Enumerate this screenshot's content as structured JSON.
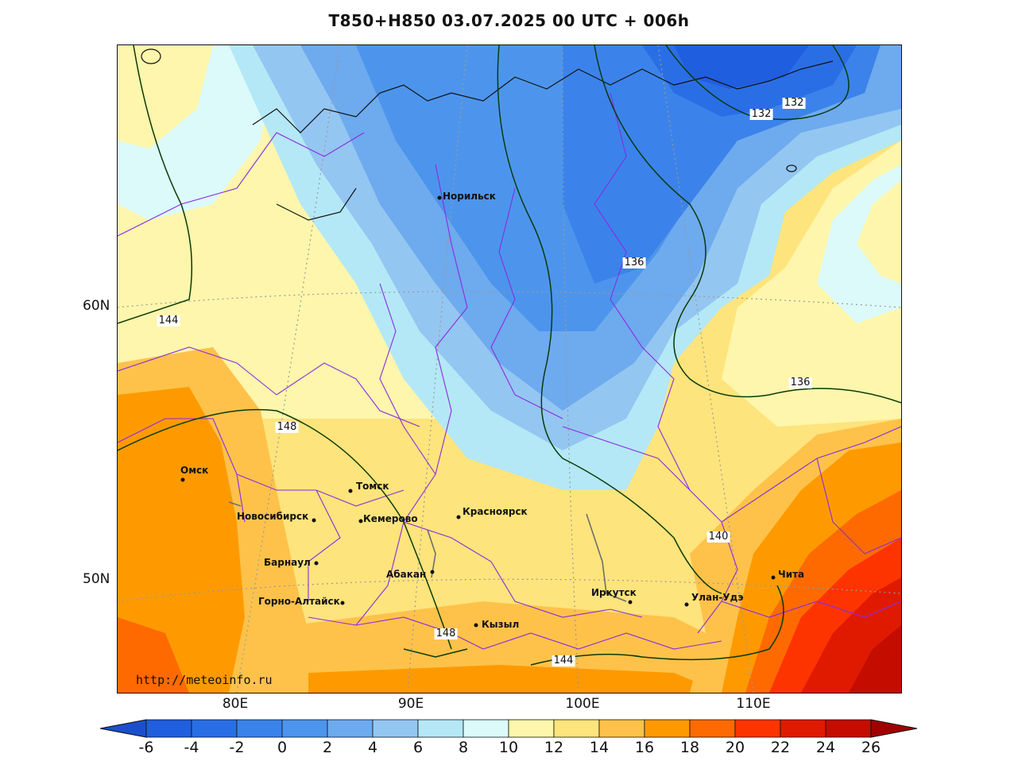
{
  "title": "T850+H850 03.07.2025 00 UTC + 006h",
  "watermark": "http://meteoinfo.ru",
  "lat_labels": [
    "60N",
    "50N"
  ],
  "lon_labels": [
    "80E",
    "90E",
    "100E",
    "110E"
  ],
  "cities": [
    {
      "name": "Норильск"
    },
    {
      "name": "Омск"
    },
    {
      "name": "Томск"
    },
    {
      "name": "Новосибирск"
    },
    {
      "name": "Кемерово"
    },
    {
      "name": "Красноярск"
    },
    {
      "name": "Барнаул"
    },
    {
      "name": "Абакан"
    },
    {
      "name": "Горно-Алтайск"
    },
    {
      "name": "Иркутск"
    },
    {
      "name": "Улан-Удэ"
    },
    {
      "name": "Чита"
    },
    {
      "name": "Кызыл"
    }
  ],
  "contour_labels": [
    "132",
    "132",
    "136",
    "144",
    "136",
    "148",
    "140",
    "148",
    "144"
  ],
  "legend": {
    "ticks": [
      "-6",
      "-4",
      "-2",
      "0",
      "2",
      "4",
      "6",
      "8",
      "10",
      "12",
      "14",
      "16",
      "18",
      "20",
      "22",
      "24",
      "26"
    ],
    "colors": [
      "#1f5ede",
      "#2a6ee6",
      "#3b83ea",
      "#4d95ec",
      "#6eaaee",
      "#94c6f2",
      "#b4e8f6",
      "#dcfafa",
      "#fdf6ac",
      "#fee47c",
      "#fec24a",
      "#fe9a00",
      "#fe6a00",
      "#fe3400",
      "#e01a00",
      "#c40c00"
    ],
    "under_color": "#1a4fcc",
    "over_color": "#a00000"
  }
}
